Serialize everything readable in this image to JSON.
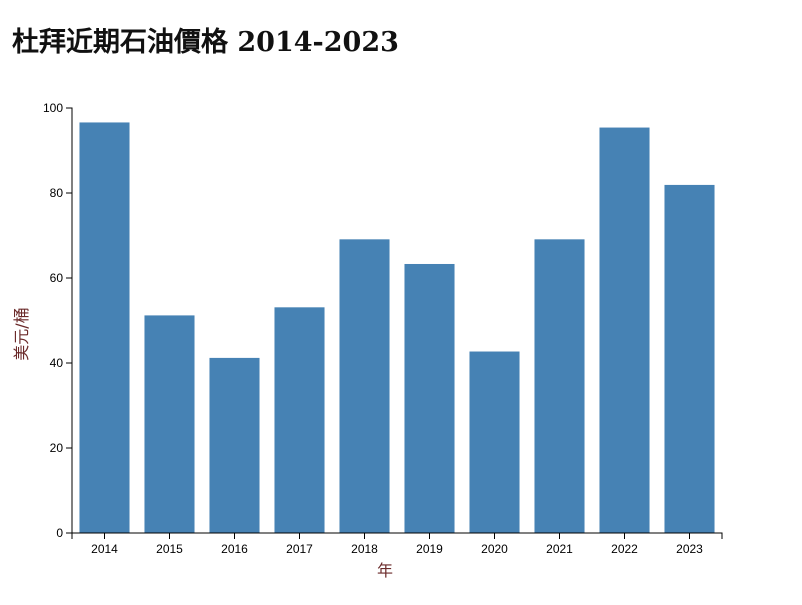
{
  "chart_data": {
    "type": "bar",
    "title": "杜拜近期石油價格 2014-2023",
    "xlabel": "年",
    "ylabel": "美元/桶",
    "categories": [
      "2014",
      "2015",
      "2016",
      "2017",
      "2018",
      "2019",
      "2020",
      "2021",
      "2022",
      "2023"
    ],
    "values": [
      96.6,
      51.2,
      41.2,
      53.1,
      69.1,
      63.3,
      42.7,
      69.1,
      95.4,
      81.9
    ],
    "ylim": [
      0,
      100
    ],
    "yticks": [
      "0",
      "20",
      "40",
      "60",
      "80",
      "100"
    ],
    "bar_color": "#4682b4",
    "grid": false,
    "legend": "none"
  }
}
